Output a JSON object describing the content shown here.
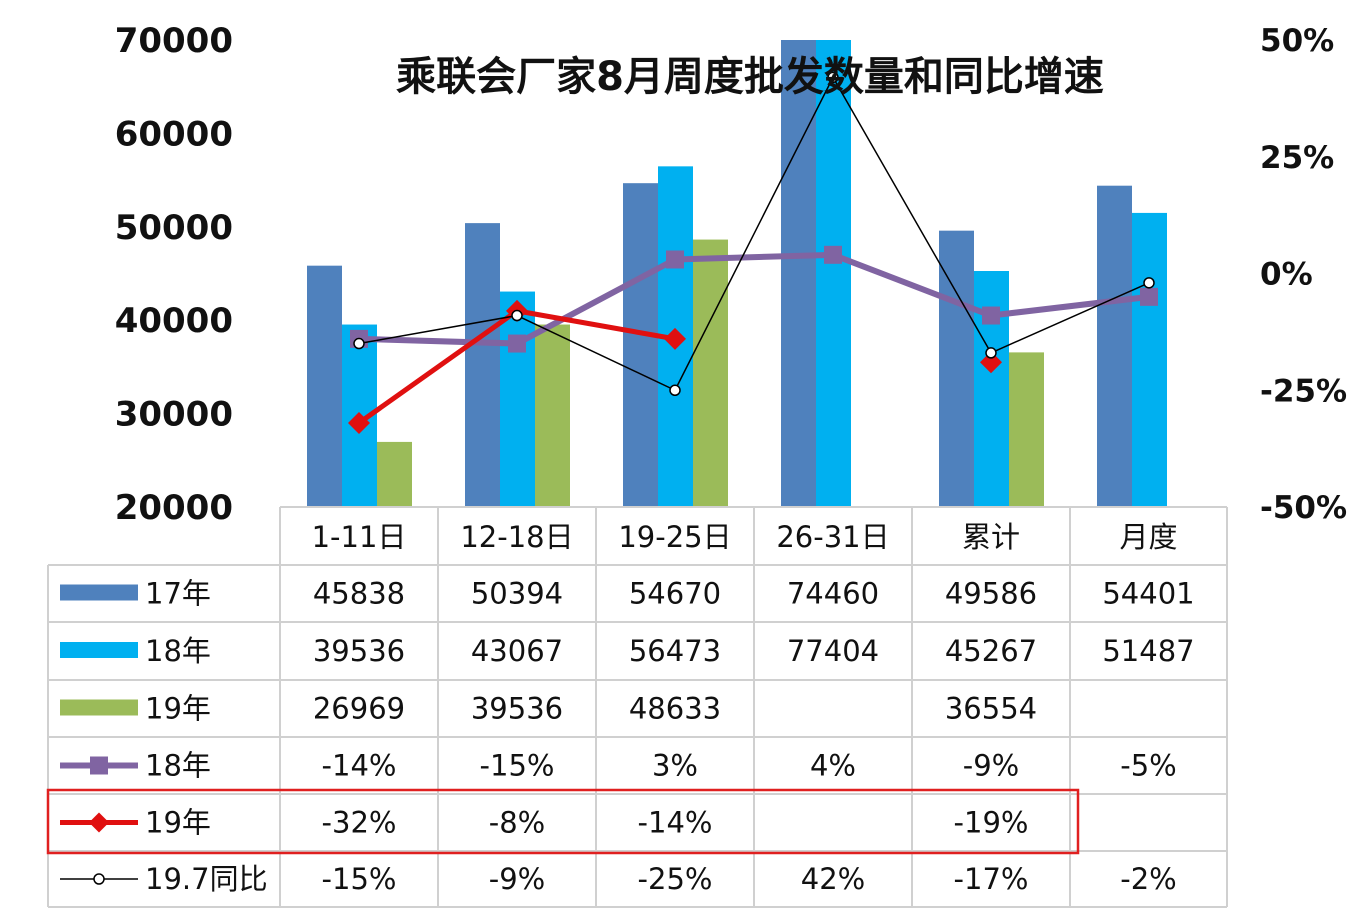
{
  "chart_data": {
    "type": "bar",
    "title": "乘联会厂家8月周度批发数量和同比增速",
    "categories": [
      "1-11日",
      "12-18日",
      "19-25日",
      "26-31日",
      "累计",
      "月度"
    ],
    "y_left": {
      "ylim": [
        20000,
        70000
      ],
      "ticks": [
        "70000",
        "60000",
        "50000",
        "40000",
        "30000",
        "20000"
      ]
    },
    "y_right": {
      "ylim": [
        -50,
        50
      ],
      "ticks": [
        "50%",
        "25%",
        "0%",
        "-25%",
        "-50%"
      ]
    },
    "bar_series": [
      {
        "name": "17年",
        "color": "#4f81bd",
        "values": [
          45838,
          50394,
          54670,
          74460,
          49586,
          54401
        ],
        "labels": [
          "45838",
          "50394",
          "54670",
          "74460",
          "49586",
          "54401"
        ]
      },
      {
        "name": "18年",
        "color": "#00b0f0",
        "values": [
          39536,
          43067,
          56473,
          77404,
          45267,
          51487
        ],
        "labels": [
          "39536",
          "43067",
          "56473",
          "77404",
          "45267",
          "51487"
        ]
      },
      {
        "name": "19年",
        "color": "#9bbb59",
        "values": [
          26969,
          39536,
          48633,
          null,
          36554,
          null
        ],
        "labels": [
          "26969",
          "39536",
          "48633",
          "",
          "36554",
          ""
        ]
      }
    ],
    "line_series": [
      {
        "name": "18年",
        "color": "#8064a2",
        "marker": "square",
        "values": [
          -14,
          -15,
          3,
          4,
          -9,
          -5
        ],
        "labels": [
          "-14%",
          "-15%",
          "3%",
          "4%",
          "-9%",
          "-5%"
        ]
      },
      {
        "name": "19年",
        "color": "#e01010",
        "marker": "diamond",
        "values": [
          -32,
          -8,
          -14,
          null,
          -19,
          null
        ],
        "labels": [
          "-32%",
          "-8%",
          "-14%",
          "",
          "-19%",
          ""
        ]
      },
      {
        "name": "19.7同比",
        "color": "#000000",
        "marker": "circle",
        "values": [
          -15,
          -9,
          -25,
          42,
          -17,
          -2
        ],
        "labels": [
          "-15%",
          "-9%",
          "-25%",
          "42%",
          "-17%",
          "-2%"
        ]
      }
    ],
    "highlight_row": "19年",
    "highlight_color": "#e02020",
    "grid": false,
    "legend": "data-table"
  }
}
